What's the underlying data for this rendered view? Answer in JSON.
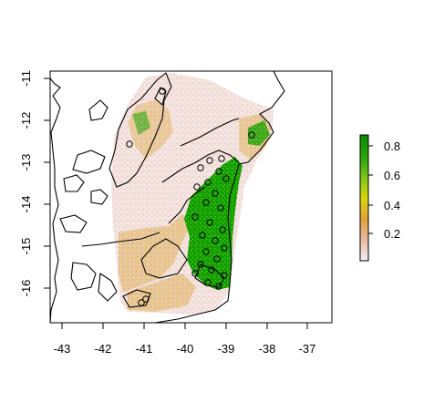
{
  "map": {
    "x_ticks": [
      "-43",
      "-42",
      "-41",
      "-40",
      "-39",
      "-38",
      "-37"
    ],
    "y_ticks": [
      "-11",
      "-12",
      "-13",
      "-14",
      "-15",
      "-16"
    ],
    "legend": {
      "labels": [
        "0.2",
        "0.4",
        "0.6",
        "0.8"
      ],
      "colors": [
        "#f2f2f2",
        "#e8b69a",
        "#e2a23a",
        "#d8d60a",
        "#7fc41a",
        "#2aa40a",
        "#0a8a00"
      ]
    },
    "colors": {
      "low": "#f1d9d4",
      "mid_orange": "#dba25a",
      "yellow": "#d6d10a",
      "green": "#0e9a00",
      "outline": "#000000"
    }
  }
}
